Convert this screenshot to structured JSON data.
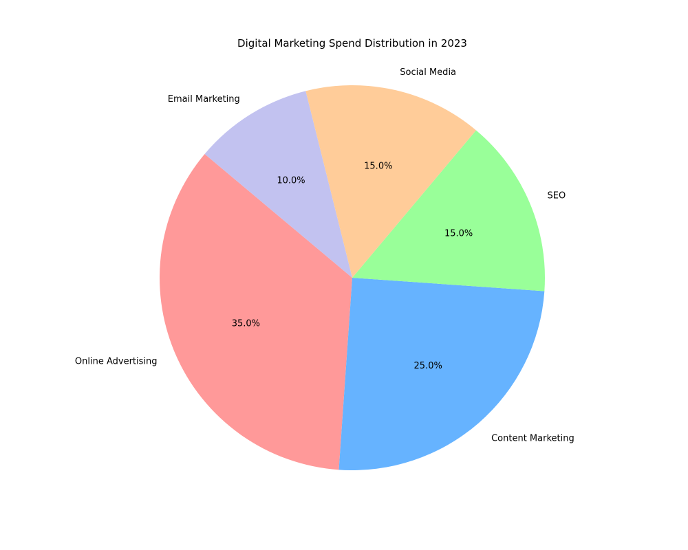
{
  "chart_data": {
    "type": "pie",
    "title": "Digital Marketing Spend Distribution in 2023",
    "start_angle_deg": 140,
    "direction": "counterclockwise",
    "slices": [
      {
        "label": "Online Advertising",
        "value": 35,
        "pct_label": "35.0%",
        "color": "#ff9999"
      },
      {
        "label": "Content Marketing",
        "value": 25,
        "pct_label": "25.0%",
        "color": "#66b3ff"
      },
      {
        "label": "SEO",
        "value": 15,
        "pct_label": "15.0%",
        "color": "#99ff99"
      },
      {
        "label": "Social Media",
        "value": 15,
        "pct_label": "15.0%",
        "color": "#ffcc99"
      },
      {
        "label": "Email Marketing",
        "value": 10,
        "pct_label": "10.0%",
        "color": "#c2c2f0"
      }
    ]
  }
}
